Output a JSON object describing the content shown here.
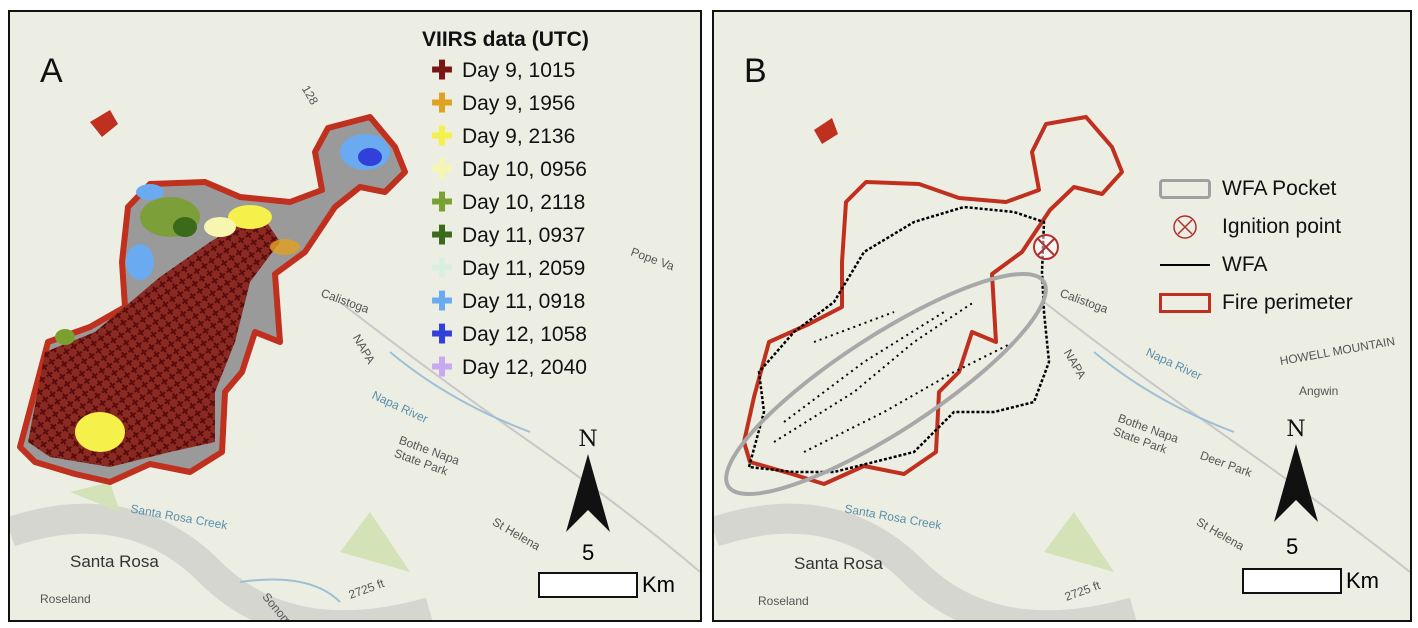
{
  "panel_a": {
    "label": "A",
    "legend_title": "VIIRS data (UTC)",
    "legend": [
      {
        "label": "Day 9, 1015",
        "color": "#7a1515"
      },
      {
        "label": "Day 9, 1956",
        "color": "#e0a020"
      },
      {
        "label": "Day 9, 2136",
        "color": "#f5f04a"
      },
      {
        "label": "Day 10, 0956",
        "color": "#f6f6b0"
      },
      {
        "label": "Day 10, 2118",
        "color": "#7aa030"
      },
      {
        "label": "Day 11, 0937",
        "color": "#3a6a1a"
      },
      {
        "label": "Day 11, 2059",
        "color": "#d8f0dc"
      },
      {
        "label": "Day 11, 0918",
        "color": "#6aaaf0"
      },
      {
        "label": "Day 12, 1058",
        "color": "#3040d8"
      },
      {
        "label": "Day 12, 2040",
        "color": "#c8a8f0"
      }
    ]
  },
  "panel_b": {
    "label": "B",
    "legend": [
      {
        "label": "WFA Pocket",
        "color": "#a0a0a0"
      },
      {
        "label": "Ignition point",
        "color": "#b03030"
      },
      {
        "label": "WFA",
        "color": "#000000"
      },
      {
        "label": "Fire perimeter",
        "color": "#c0301e"
      }
    ]
  },
  "north_label": "N",
  "scale_value": "5",
  "scale_unit": "Km",
  "map_labels": {
    "santa_rosa": "Santa Rosa",
    "roseland": "Roseland",
    "santa_rosa_creek": "Santa Rosa Creek",
    "st_helena": "St Helena",
    "calistoga": "Calistoga",
    "napa_river": "Napa River",
    "napa": "NAPA",
    "bothe": "Bothe Napa State Park",
    "deer_park": "Deer Park",
    "angwin": "Angwin",
    "pope_valley": "Pope Va",
    "elevation": "2725 ft",
    "sonoma": "Sonom",
    "howell": "HOWELL MOUNTAIN",
    "route": "128"
  },
  "colors": {
    "perimeter": "#c0301e",
    "burned": "#9a9a9a",
    "wfa": "#000000",
    "pocket": "#a0a0a0"
  }
}
